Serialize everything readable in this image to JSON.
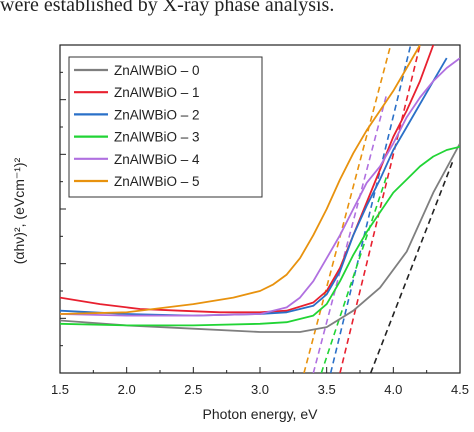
{
  "heading": "were established by X-ray phase analysis.",
  "chart_data": {
    "type": "line",
    "title": "",
    "xlabel": "Photon energy, eV",
    "ylabel": "(αhν)², (eVcm⁻¹)²",
    "xlim": [
      1.5,
      4.5
    ],
    "ylim": [
      0,
      100
    ],
    "x_ticks": [
      "1.5",
      "2.0",
      "2.5",
      "3.0",
      "3.5",
      "4.0",
      "4.5"
    ],
    "legend_position": "top-left",
    "series": [
      {
        "name": "ZnAlWBiO – 0",
        "color": "#7f7f7f",
        "x": [
          1.5,
          2.0,
          2.5,
          3.0,
          3.3,
          3.5,
          3.7,
          3.9,
          4.1,
          4.3,
          4.5
        ],
        "y": [
          16,
          14.5,
          13.5,
          12.5,
          12.5,
          14,
          19,
          26,
          37,
          55,
          70
        ]
      },
      {
        "name": "ZnAlWBiO – 1",
        "color": "#e8202f",
        "x": [
          1.5,
          1.8,
          2.1,
          2.4,
          2.7,
          3.0,
          3.2,
          3.4,
          3.5,
          3.6,
          3.7,
          3.8,
          3.9,
          4.0,
          4.1,
          4.2,
          4.3
        ],
        "y": [
          23,
          21,
          19.5,
          19,
          18.5,
          18.5,
          19,
          21.5,
          25,
          32,
          42,
          52,
          62,
          72,
          80,
          89,
          100
        ]
      },
      {
        "name": "ZnAlWBiO – 2",
        "color": "#2a70c8",
        "x": [
          1.5,
          2.0,
          2.5,
          3.0,
          3.2,
          3.4,
          3.5,
          3.6,
          3.7,
          3.8,
          3.9,
          4.0,
          4.1,
          4.2,
          4.3,
          4.4
        ],
        "y": [
          19,
          18,
          17.5,
          18,
          18.5,
          20.5,
          24,
          31,
          42,
          51,
          59,
          68,
          75,
          82,
          89,
          96
        ]
      },
      {
        "name": "ZnAlWBiO – 3",
        "color": "#21d435",
        "x": [
          1.5,
          2.0,
          2.5,
          3.0,
          3.2,
          3.4,
          3.5,
          3.6,
          3.7,
          3.8,
          3.9,
          4.0,
          4.1,
          4.2,
          4.3,
          4.4,
          4.5
        ],
        "y": [
          15,
          14.5,
          14.5,
          15,
          15.5,
          17.5,
          21,
          28,
          36,
          43,
          49,
          55,
          59,
          63,
          66,
          68,
          69
        ]
      },
      {
        "name": "ZnAlWBiO – 4",
        "color": "#b070e0",
        "x": [
          1.5,
          2.0,
          2.5,
          3.0,
          3.2,
          3.3,
          3.4,
          3.5,
          3.6,
          3.7,
          3.8,
          3.9,
          4.0,
          4.1,
          4.2,
          4.3,
          4.4,
          4.5
        ],
        "y": [
          18,
          17.5,
          17.5,
          18,
          20,
          23,
          28,
          35,
          42,
          50,
          58,
          63,
          70,
          78,
          84,
          89,
          93,
          96
        ]
      },
      {
        "name": "ZnAlWBiO – 5",
        "color": "#e8920e",
        "x": [
          1.5,
          2.0,
          2.5,
          2.8,
          3.0,
          3.1,
          3.2,
          3.3,
          3.4,
          3.5,
          3.6,
          3.7,
          3.8,
          3.9,
          4.0,
          4.1,
          4.2
        ],
        "y": [
          18,
          18.5,
          21,
          23,
          25,
          27,
          30,
          35,
          42,
          50,
          59,
          67,
          74,
          80,
          86,
          93,
          100
        ]
      }
    ],
    "tangents": [
      {
        "series": "ZnAlWBiO – 0",
        "color": "#222222",
        "x": [
          3.83,
          4.45
        ],
        "y": [
          0,
          65
        ]
      },
      {
        "series": "ZnAlWBiO – 1",
        "color": "#e8202f",
        "x": [
          3.6,
          4.2
        ],
        "y": [
          0,
          100
        ]
      },
      {
        "series": "ZnAlWBiO – 2",
        "color": "#2a70c8",
        "x": [
          3.53,
          4.13
        ],
        "y": [
          0,
          100
        ]
      },
      {
        "series": "ZnAlWBiO – 3",
        "color": "#21d435",
        "x": [
          3.46,
          3.95
        ],
        "y": [
          0,
          60
        ]
      },
      {
        "series": "ZnAlWBiO – 4",
        "color": "#b070e0",
        "x": [
          3.4,
          3.95
        ],
        "y": [
          0,
          85
        ]
      },
      {
        "series": "ZnAlWBiO – 5",
        "color": "#e8920e",
        "x": [
          3.33,
          3.98
        ],
        "y": [
          0,
          100
        ]
      }
    ]
  }
}
